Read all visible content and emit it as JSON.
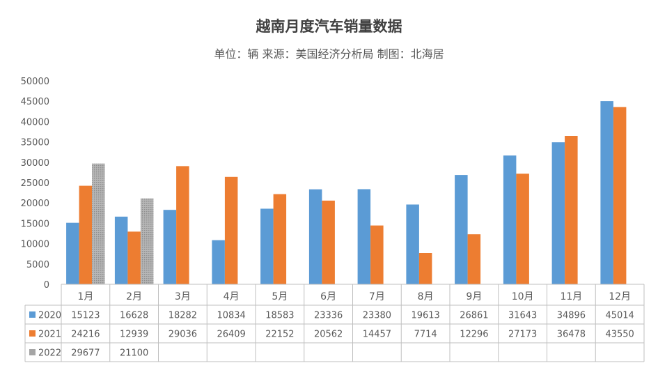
{
  "chart_data": {
    "type": "bar",
    "title": "越南月度汽车销量数据",
    "subtitle": "单位：辆 来源：美国经济分析局 制图：北海居",
    "categories": [
      "1月",
      "2月",
      "3月",
      "4月",
      "5月",
      "6月",
      "7月",
      "8月",
      "9月",
      "10月",
      "11月",
      "12月"
    ],
    "series": [
      {
        "name": "2020",
        "color": "#5B9BD5",
        "values": [
          15123,
          16628,
          18282,
          10834,
          18583,
          23336,
          23380,
          19613,
          26861,
          31643,
          34896,
          45014
        ]
      },
      {
        "name": "2021",
        "color": "#ED7D31",
        "values": [
          24216,
          12939,
          29036,
          26409,
          22152,
          20562,
          14457,
          7714,
          12296,
          27173,
          36478,
          43550
        ]
      },
      {
        "name": "2022",
        "color": "#A5A5A5",
        "values": [
          29677,
          21100,
          null,
          null,
          null,
          null,
          null,
          null,
          null,
          null,
          null,
          null
        ]
      }
    ],
    "ylim": [
      0,
      50000
    ],
    "yticks": [
      0,
      5000,
      10000,
      15000,
      20000,
      25000,
      30000,
      35000,
      40000,
      45000,
      50000
    ],
    "data_table": true,
    "grid": false
  }
}
